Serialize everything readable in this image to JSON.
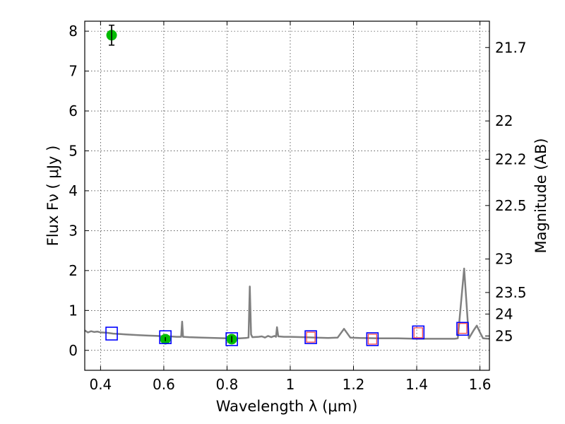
{
  "chart_data": {
    "type": "scatter",
    "title": "",
    "xlabel": "Wavelength  λ (μm)",
    "ylabel": "Flux  Fν  ( μJy )",
    "y2label": "Magnitude (AB)",
    "xlim": [
      0.35,
      1.63
    ],
    "ylim": [
      -0.5,
      8.25
    ],
    "grid": true,
    "x_ticks": [
      {
        "value": 0.4,
        "label": "0.4"
      },
      {
        "value": 0.6,
        "label": "0.6"
      },
      {
        "value": 0.8,
        "label": "0.8"
      },
      {
        "value": 1.0,
        "label": "1"
      },
      {
        "value": 1.2,
        "label": "1.2"
      },
      {
        "value": 1.4,
        "label": "1.4"
      },
      {
        "value": 1.6,
        "label": "1.6"
      }
    ],
    "y_ticks": [
      {
        "value": 0,
        "label": "0"
      },
      {
        "value": 1,
        "label": "1"
      },
      {
        "value": 2,
        "label": "2"
      },
      {
        "value": 3,
        "label": "3"
      },
      {
        "value": 4,
        "label": "4"
      },
      {
        "value": 5,
        "label": "5"
      },
      {
        "value": 6,
        "label": "6"
      },
      {
        "value": 7,
        "label": "7"
      },
      {
        "value": 8,
        "label": "8"
      }
    ],
    "mag_ticks": [
      {
        "flux": 7.59,
        "label": "21.7"
      },
      {
        "flux": 5.75,
        "label": "22"
      },
      {
        "flux": 4.79,
        "label": "22.2"
      },
      {
        "flux": 3.63,
        "label": "22.5"
      },
      {
        "flux": 2.29,
        "label": "23"
      },
      {
        "flux": 1.45,
        "label": "23.5"
      },
      {
        "flux": 0.91,
        "label": "24"
      },
      {
        "flux": 0.36,
        "label": "25"
      }
    ],
    "model_spectrum": {
      "color": "#808080",
      "points": [
        [
          0.35,
          0.5
        ],
        [
          0.36,
          0.45
        ],
        [
          0.37,
          0.48
        ],
        [
          0.38,
          0.46
        ],
        [
          0.39,
          0.47
        ],
        [
          0.4,
          0.45
        ],
        [
          0.42,
          0.44
        ],
        [
          0.44,
          0.42
        ],
        [
          0.46,
          0.41
        ],
        [
          0.48,
          0.4
        ],
        [
          0.5,
          0.39
        ],
        [
          0.52,
          0.38
        ],
        [
          0.55,
          0.37
        ],
        [
          0.58,
          0.36
        ],
        [
          0.6,
          0.35
        ],
        [
          0.62,
          0.35
        ],
        [
          0.64,
          0.34
        ],
        [
          0.655,
          0.34
        ],
        [
          0.658,
          0.72
        ],
        [
          0.661,
          0.34
        ],
        [
          0.68,
          0.33
        ],
        [
          0.72,
          0.32
        ],
        [
          0.76,
          0.31
        ],
        [
          0.8,
          0.3
        ],
        [
          0.84,
          0.3
        ],
        [
          0.86,
          0.31
        ],
        [
          0.868,
          0.32
        ],
        [
          0.872,
          1.6
        ],
        [
          0.876,
          0.4
        ],
        [
          0.88,
          0.33
        ],
        [
          0.9,
          0.34
        ],
        [
          0.91,
          0.35
        ],
        [
          0.92,
          0.32
        ],
        [
          0.93,
          0.36
        ],
        [
          0.94,
          0.33
        ],
        [
          0.95,
          0.36
        ],
        [
          0.955,
          0.34
        ],
        [
          0.958,
          0.58
        ],
        [
          0.962,
          0.35
        ],
        [
          0.98,
          0.34
        ],
        [
          1.0,
          0.34
        ],
        [
          1.04,
          0.33
        ],
        [
          1.08,
          0.32
        ],
        [
          1.12,
          0.31
        ],
        [
          1.15,
          0.32
        ],
        [
          1.17,
          0.54
        ],
        [
          1.19,
          0.32
        ],
        [
          1.22,
          0.31
        ],
        [
          1.28,
          0.3
        ],
        [
          1.34,
          0.3
        ],
        [
          1.4,
          0.29
        ],
        [
          1.46,
          0.29
        ],
        [
          1.52,
          0.29
        ],
        [
          1.53,
          0.3
        ],
        [
          1.55,
          2.05
        ],
        [
          1.565,
          0.3
        ],
        [
          1.58,
          0.5
        ],
        [
          1.59,
          0.62
        ],
        [
          1.6,
          0.45
        ],
        [
          1.61,
          0.3
        ],
        [
          1.63,
          0.29
        ]
      ]
    },
    "series": [
      {
        "marker": "circle",
        "color": "#00bb00",
        "points": [
          {
            "x": 0.435,
            "y": 7.9,
            "yerr": 0.25
          },
          {
            "x": 0.605,
            "y": 0.28,
            "yerr": 0.05
          },
          {
            "x": 0.815,
            "y": 0.28,
            "yerr": 0.08
          }
        ]
      },
      {
        "marker": "square",
        "color": "#0000ff",
        "points": [
          {
            "x": 0.435,
            "y": 0.42
          },
          {
            "x": 0.605,
            "y": 0.33
          },
          {
            "x": 0.815,
            "y": 0.28
          },
          {
            "x": 1.065,
            "y": 0.33
          },
          {
            "x": 1.26,
            "y": 0.28
          },
          {
            "x": 1.405,
            "y": 0.45
          },
          {
            "x": 1.545,
            "y": 0.54
          }
        ]
      },
      {
        "marker": "small-square",
        "color": "#ff4040",
        "points": [
          {
            "x": 1.065,
            "y": 0.33
          },
          {
            "x": 1.26,
            "y": 0.28
          },
          {
            "x": 1.405,
            "y": 0.44
          },
          {
            "x": 1.545,
            "y": 0.55
          }
        ]
      }
    ]
  }
}
